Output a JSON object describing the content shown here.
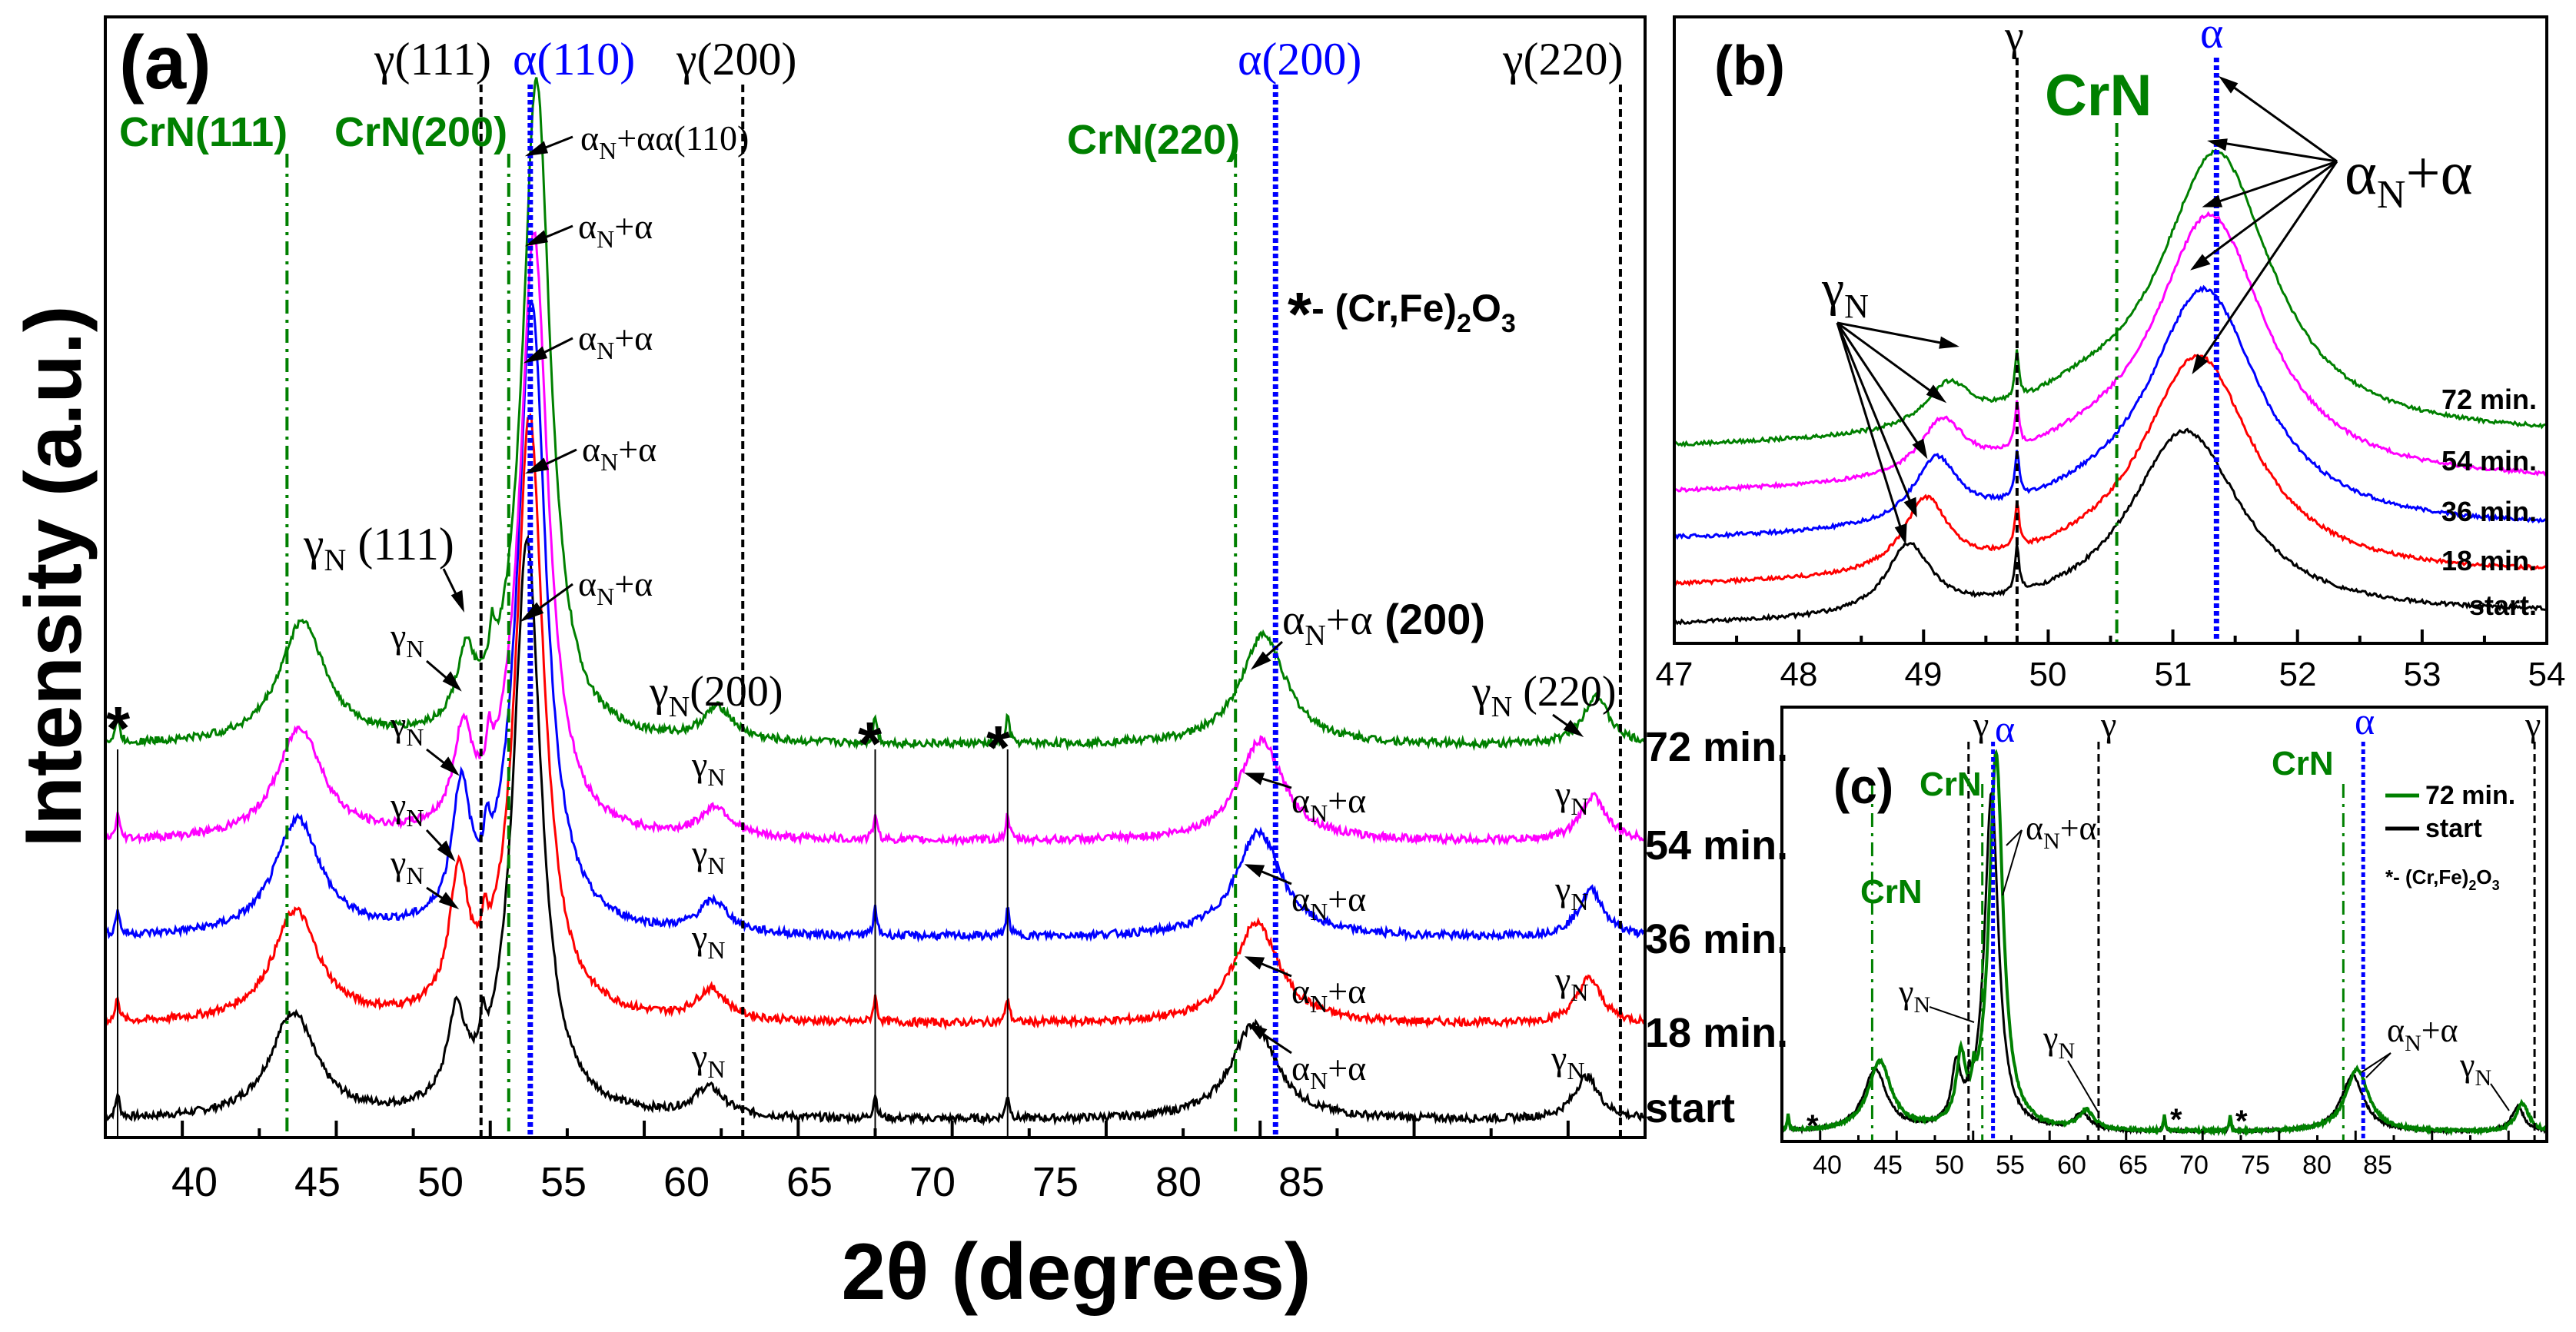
{
  "figure": {
    "y_axis_label": "Intensity (a.u.)",
    "x_axis_label": "2θ (degrees)"
  },
  "colors": {
    "start": "#000000",
    "18 min.": "#ff0000",
    "36 min.": "#0000ff",
    "54 min.": "#ff00ff",
    "72 min.": "#008000",
    "gamma_ref_line": "#000000",
    "alpha_ref_line": "#0000ff",
    "crn_ref_line": "#008000",
    "crn_text": "#008000",
    "alpha_text": "#0000ff"
  },
  "chart_data": [
    {
      "panel": "(a)",
      "type": "line",
      "x_label": "2θ (degrees)",
      "y_label": "Intensity (a.u.)",
      "xlim": [
        37.5,
        87.5
      ],
      "x_ticks": [
        40,
        45,
        50,
        55,
        60,
        65,
        70,
        75,
        80,
        85
      ],
      "series_names": [
        "start",
        "18 min.",
        "36 min.",
        "54 min.",
        "72 min."
      ],
      "series_offsets": [
        0,
        1.0,
        1.9,
        2.9,
        3.9
      ],
      "peak_shift_deg": [
        0,
        0.08,
        0.15,
        0.22,
        0.3
      ],
      "profile_peaks": [
        {
          "x": 43.6,
          "w": 0.9,
          "h": 1.1
        },
        {
          "x": 48.9,
          "w": 0.35,
          "h": 1.0
        },
        {
          "x": 49.75,
          "w": 0.1,
          "h": 0.35
        },
        {
          "x": 51.2,
          "w": 0.55,
          "h": 6.0
        },
        {
          "x": 57.1,
          "w": 0.6,
          "h": 0.3
        },
        {
          "x": 74.8,
          "w": 0.9,
          "h": 1.0
        },
        {
          "x": 85.6,
          "w": 0.5,
          "h": 0.45
        }
      ],
      "star_peaks_x": [
        37.9,
        62.5,
        66.8
      ],
      "reference_lines": [
        {
          "label": "CrN(111)",
          "x": 43.4,
          "kind": "crn"
        },
        {
          "label": "CrN(200)",
          "x": 50.6,
          "kind": "crn"
        },
        {
          "label": "CrN(220)",
          "x": 74.2,
          "kind": "crn"
        },
        {
          "label": "γ(111)",
          "x": 49.7,
          "kind": "gamma"
        },
        {
          "label": "α(110)",
          "x": 51.3,
          "kind": "alpha"
        },
        {
          "label": "γ(200)",
          "x": 58.2,
          "kind": "gamma"
        },
        {
          "label": "α(200)",
          "x": 75.5,
          "kind": "alpha"
        },
        {
          "label": "γ(220)",
          "x": 86.7,
          "kind": "gamma"
        }
      ],
      "annotations": [
        "αN+α(110)",
        "αN+α",
        "αN+α",
        "αN+α",
        "αN+α",
        "γN (111)",
        "γN",
        "γN",
        "γN",
        "γN(200)",
        "γN",
        "γN",
        "γN",
        "γN",
        "αN+α (200)",
        "αN+α",
        "αN+α",
        "αN+α",
        "αN+α",
        "γN (220)",
        "γN",
        "γN",
        "γN",
        "γN",
        "*- (Cr,Fe)2O3"
      ]
    },
    {
      "panel": "(b)",
      "type": "line",
      "xlim": [
        47,
        54
      ],
      "x_ticks": [
        47,
        48,
        49,
        50,
        51,
        52,
        53,
        54
      ],
      "series_names": [
        "start.",
        "18 min.",
        "36 min.",
        "54 min.",
        "72 min."
      ],
      "reference_lines": [
        {
          "label": "γ",
          "x": 49.75,
          "kind": "gamma"
        },
        {
          "label": "CrN",
          "x": 50.55,
          "kind": "crn"
        },
        {
          "label": "α",
          "x": 51.35,
          "kind": "alpha"
        }
      ],
      "annotations": [
        "γN",
        "αN+α"
      ]
    },
    {
      "panel": "(c)",
      "type": "line",
      "xlim": [
        37.5,
        87.5
      ],
      "x_ticks": [
        40,
        45,
        50,
        55,
        60,
        65,
        70,
        75,
        80,
        85
      ],
      "series_names": [
        "72 min.",
        "start"
      ],
      "reference_lines": [
        {
          "label": "CrN",
          "x": 43.4,
          "kind": "crn"
        },
        {
          "label": "γ",
          "x": 49.7,
          "kind": "gamma"
        },
        {
          "label": "CrN",
          "x": 50.6,
          "kind": "crn"
        },
        {
          "label": "α",
          "x": 51.3,
          "kind": "alpha"
        },
        {
          "label": "γ",
          "x": 58.2,
          "kind": "gamma"
        },
        {
          "label": "CrN",
          "x": 74.2,
          "kind": "crn"
        },
        {
          "label": "α",
          "x": 75.5,
          "kind": "alpha"
        },
        {
          "label": "γ",
          "x": 86.7,
          "kind": "gamma"
        }
      ],
      "annotations": [
        "αN+α",
        "γN",
        "γN",
        "αN+α",
        "γN",
        "*- (Cr,Fe)2O3"
      ]
    }
  ],
  "panels": {
    "a": {
      "letter": "(a)",
      "crn111": "CrN(111)",
      "crn200": "CrN(200)",
      "crn220": "CrN(220)",
      "g111": "γ(111)",
      "a110": "α(110)",
      "g200": "γ(200)",
      "a200": "α(200)",
      "g220": "γ(220)",
      "legend_star": "*",
      "legend_text": "- (Cr,Fe)",
      "legend_sub2": "2",
      "legend_o3": "O",
      "legend_sub3": "3",
      "star": "*",
      "gamma": "γ",
      "sub_n": "N",
      "alpha_plus": "+α",
      "alpha": "α",
      "l_111": " (111)",
      "l_110": "(110)",
      "l_200_serif": "(200)",
      "l_200_bold": " (200)",
      "l_220": " (220)",
      "series_labels": [
        "start",
        "18 min.",
        "36 min.",
        "54 min.",
        "72 min."
      ],
      "x_ticks": [
        "40",
        "45",
        "50",
        "55",
        "60",
        "65",
        "70",
        "75",
        "80",
        "85"
      ]
    },
    "b": {
      "letter": "(b)",
      "gamma": "γ",
      "crn": "CrN",
      "alpha": "α",
      "gn": "γ",
      "sub_n": "N",
      "alpha_n": "α",
      "alpha_plus": "+α",
      "series_labels": [
        "start.",
        "18 min.",
        "36 min.",
        "54 min.",
        "72 min."
      ],
      "x_ticks": [
        "47",
        "48",
        "49",
        "50",
        "51",
        "52",
        "53",
        "54"
      ]
    },
    "c": {
      "letter": "(c)",
      "crn": "CrN",
      "gamma": "γ",
      "alpha": "α",
      "sub_n": "N",
      "alpha_plus": "+α",
      "legend_72": "72 min.",
      "legend_start": "start",
      "legend_star": "*- (Cr,Fe)",
      "legend_sub2": "2",
      "legend_o": "O",
      "legend_sub3": "3",
      "star": "*",
      "x_ticks": [
        "40",
        "45",
        "50",
        "55",
        "60",
        "65",
        "70",
        "75",
        "80",
        "85"
      ]
    }
  }
}
